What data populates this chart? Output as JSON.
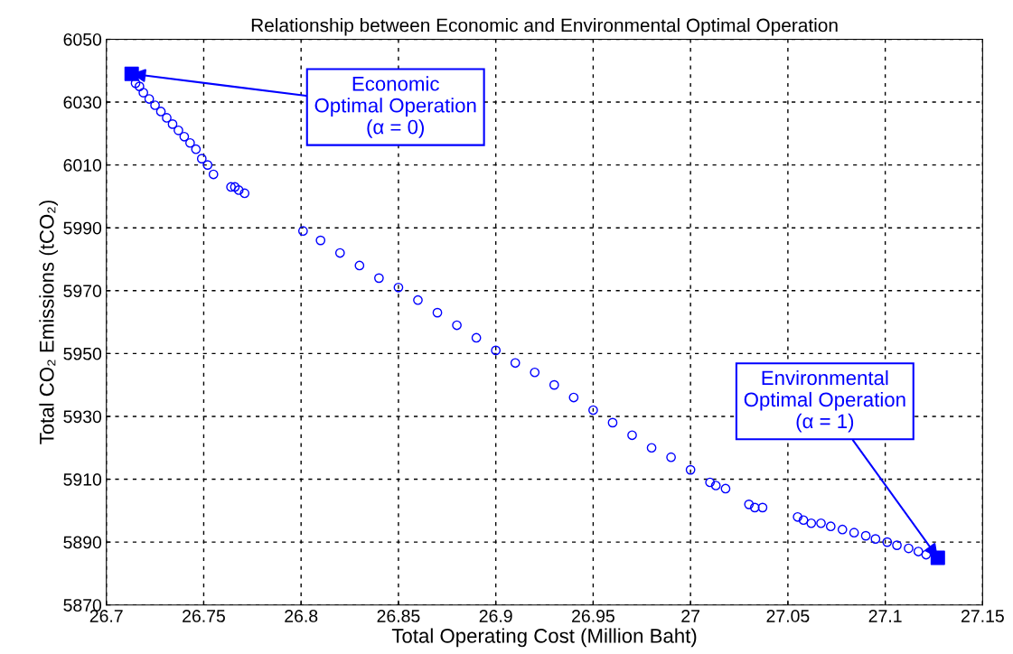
{
  "chart_data": {
    "type": "scatter",
    "title": "Relationship between Economic and Environmental Optimal Operation",
    "xlabel": "Total Operating Cost (Million Baht)",
    "ylabel": "Total CO₂ Emissions (tCO₂)",
    "xlim": [
      26.7,
      27.15
    ],
    "xticks": [
      26.7,
      26.75,
      26.8,
      26.85,
      26.9,
      26.95,
      27,
      27.05,
      27.1,
      27.15
    ],
    "ylim": [
      5870,
      6050
    ],
    "yticks": [
      5870,
      5890,
      5910,
      5930,
      5950,
      5970,
      5990,
      6010,
      6030,
      6050
    ],
    "grid": true,
    "series": [
      {
        "marker": "circle",
        "color": "#0000ff",
        "x": [
          26.715,
          26.717,
          26.719,
          26.722,
          26.725,
          26.728,
          26.731,
          26.734,
          26.737,
          26.74,
          26.743,
          26.746,
          26.749,
          26.752,
          26.755,
          26.764,
          26.766,
          26.768,
          26.771,
          26.801,
          26.81,
          26.82,
          26.83,
          26.84,
          26.85,
          26.86,
          26.87,
          26.88,
          26.89,
          26.9,
          26.91,
          26.92,
          26.93,
          26.94,
          26.95,
          26.96,
          26.97,
          26.98,
          26.99,
          27.0,
          27.01,
          27.013,
          27.018,
          27.03,
          27.033,
          27.037,
          27.055,
          27.058,
          27.062,
          27.067,
          27.072,
          27.078,
          27.084,
          27.09,
          27.095,
          27.101,
          27.106,
          27.112,
          27.117,
          27.121
        ],
        "values": [
          6036,
          6035,
          6033,
          6031,
          6029,
          6027,
          6025,
          6023,
          6021,
          6019,
          6017,
          6015,
          6012,
          6010,
          6007,
          6003,
          6003,
          6002,
          6001,
          5989,
          5986,
          5982,
          5978,
          5974,
          5971,
          5967,
          5963,
          5959,
          5955,
          5951,
          5947,
          5944,
          5940,
          5936,
          5932,
          5928,
          5924,
          5920,
          5917,
          5913,
          5909,
          5908,
          5907,
          5902,
          5901,
          5901,
          5898,
          5897,
          5896,
          5896,
          5895,
          5894,
          5893,
          5892,
          5891,
          5890,
          5889,
          5888,
          5887,
          5886
        ]
      },
      {
        "marker": "square",
        "color": "#0000ff",
        "x": [
          26.713,
          27.127
        ],
        "values": [
          6039,
          5885
        ]
      }
    ],
    "annotations": [
      {
        "text": "Economic\nOptimal Operation\n(α = 0)",
        "x": 26.713,
        "y": 6039
      },
      {
        "text": "Environmental\nOptimal Operation\n(α = 1)",
        "x": 27.127,
        "y": 5885
      }
    ]
  }
}
